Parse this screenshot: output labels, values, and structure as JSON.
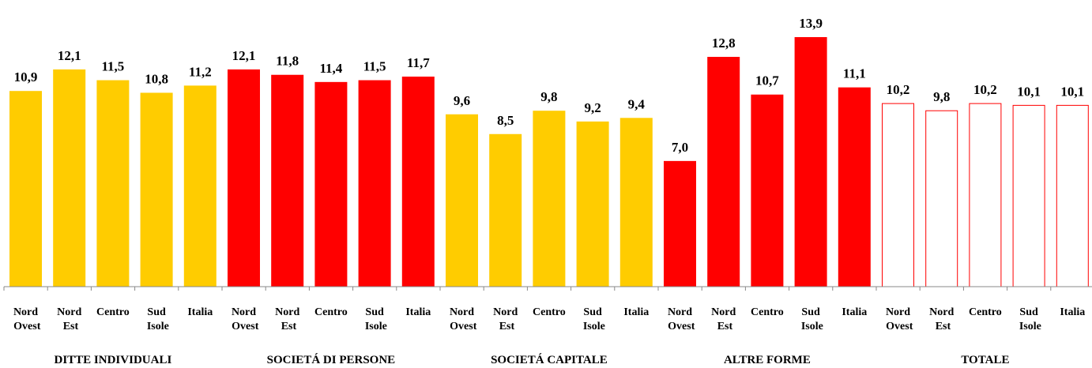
{
  "chart_data": {
    "type": "bar",
    "groups": [
      {
        "name": "DITTE INDIVIDUALI",
        "color": "#ffcc00",
        "hollow": false,
        "categories": [
          "Nord Ovest",
          "Nord Est",
          "Centro",
          "Sud Isole",
          "Italia"
        ],
        "values": [
          10.9,
          12.1,
          11.5,
          10.8,
          11.2
        ],
        "value_labels": [
          "10,9",
          "12,1",
          "11,5",
          "10,8",
          "11,2"
        ]
      },
      {
        "name": "SOCIETÁ DI PERSONE",
        "color": "#ff0000",
        "hollow": false,
        "categories": [
          "Nord Ovest",
          "Nord Est",
          "Centro",
          "Sud Isole",
          "Italia"
        ],
        "values": [
          12.1,
          11.8,
          11.4,
          11.5,
          11.7
        ],
        "value_labels": [
          "12,1",
          "11,8",
          "11,4",
          "11,5",
          "11,7"
        ]
      },
      {
        "name": "SOCIETÁ CAPITALE",
        "color": "#ffcc00",
        "hollow": false,
        "categories": [
          "Nord Ovest",
          "Nord Est",
          "Centro",
          "Sud Isole",
          "Italia"
        ],
        "values": [
          9.6,
          8.5,
          9.8,
          9.2,
          9.4
        ],
        "value_labels": [
          "9,6",
          "8,5",
          "9,8",
          "9,2",
          "9,4"
        ]
      },
      {
        "name": "ALTRE FORME",
        "color": "#ff0000",
        "hollow": false,
        "categories": [
          "Nord Ovest",
          "Nord Est",
          "Centro",
          "Sud Isole",
          "Italia"
        ],
        "values": [
          7.0,
          12.8,
          10.7,
          13.9,
          11.1
        ],
        "value_labels": [
          "7,0",
          "12,8",
          "10,7",
          "13,9",
          "11,1"
        ]
      },
      {
        "name": "TOTALE",
        "color": "#ff0000",
        "hollow": true,
        "categories": [
          "Nord Ovest",
          "Nord Est",
          "Centro",
          "Sud Isole",
          "Italia"
        ],
        "values": [
          10.2,
          9.8,
          10.2,
          10.1,
          10.1
        ],
        "value_labels": [
          "10,2",
          "9,8",
          "10,2",
          "10,1",
          "10,1"
        ]
      }
    ]
  }
}
